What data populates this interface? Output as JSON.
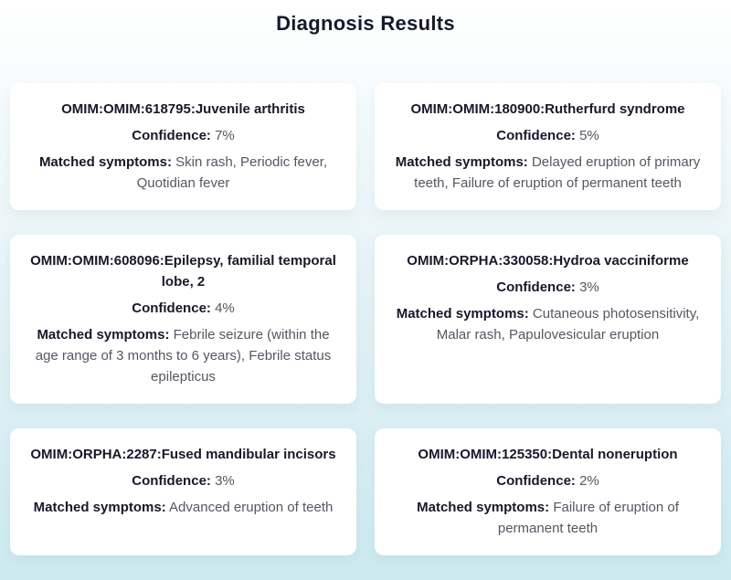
{
  "page": {
    "title": "Diagnosis Results"
  },
  "labels": {
    "confidence": "Confidence:",
    "matched_symptoms": "Matched symptoms:"
  },
  "colors": {
    "background_top": "#ffffff",
    "background_bottom": "#cdeaf1",
    "card_background": "#ffffff",
    "heading_text": "#18182b",
    "body_text": "#565663"
  },
  "results": [
    {
      "title": "OMIM:OMIM:618795:Juvenile arthritis",
      "confidence": "7%",
      "symptoms": "Skin rash, Periodic fever, Quotidian fever"
    },
    {
      "title": "OMIM:OMIM:180900:Rutherfurd syndrome",
      "confidence": "5%",
      "symptoms": "Delayed eruption of primary teeth, Failure of eruption of permanent teeth"
    },
    {
      "title": "OMIM:OMIM:608096:Epilepsy, familial temporal lobe, 2",
      "confidence": "4%",
      "symptoms": "Febrile seizure (within the age range of 3 months to 6 years), Febrile status epilepticus"
    },
    {
      "title": "OMIM:ORPHA:330058:Hydroa vacciniforme",
      "confidence": "3%",
      "symptoms": "Cutaneous photosensitivity, Malar rash, Papulovesicular eruption"
    },
    {
      "title": "OMIM:ORPHA:2287:Fused mandibular incisors",
      "confidence": "3%",
      "symptoms": "Advanced eruption of teeth"
    },
    {
      "title": "OMIM:OMIM:125350:Dental noneruption",
      "confidence": "2%",
      "symptoms": "Failure of eruption of permanent teeth"
    }
  ]
}
